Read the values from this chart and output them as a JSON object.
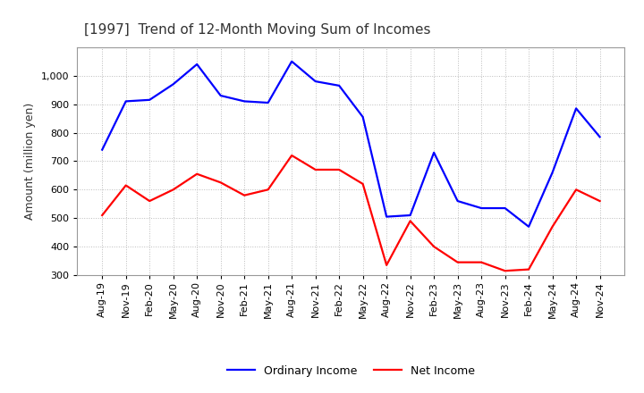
{
  "title": "[1997]  Trend of 12-Month Moving Sum of Incomes",
  "ylabel": "Amount (million yen)",
  "ylim": [
    300,
    1100
  ],
  "yticks": [
    300,
    400,
    500,
    600,
    700,
    800,
    900,
    1000
  ],
  "background_color": "#ffffff",
  "plot_bg_color": "#ffffff",
  "x_labels": [
    "Aug-19",
    "Nov-19",
    "Feb-20",
    "May-20",
    "Aug-20",
    "Nov-20",
    "Feb-21",
    "May-21",
    "Aug-21",
    "Nov-21",
    "Feb-22",
    "May-22",
    "Aug-22",
    "Nov-22",
    "Feb-23",
    "May-23",
    "Aug-23",
    "Nov-23",
    "Feb-24",
    "May-24",
    "Aug-24",
    "Nov-24"
  ],
  "ordinary_income": [
    740,
    910,
    915,
    970,
    1040,
    930,
    910,
    905,
    1050,
    980,
    965,
    855,
    505,
    510,
    730,
    560,
    535,
    535,
    470,
    660,
    885,
    785
  ],
  "net_income": [
    510,
    615,
    560,
    600,
    655,
    625,
    580,
    600,
    720,
    670,
    670,
    620,
    335,
    490,
    400,
    345,
    345,
    315,
    320,
    470,
    600,
    560
  ],
  "ordinary_color": "#0000ff",
  "net_color": "#ff0000",
  "line_width": 1.6,
  "title_fontsize": 11,
  "title_color": "#333333",
  "label_fontsize": 9,
  "tick_fontsize": 8,
  "legend_fontsize": 9,
  "grid_color": "#bbbbbb",
  "grid_style": ":",
  "grid_linewidth": 0.7
}
